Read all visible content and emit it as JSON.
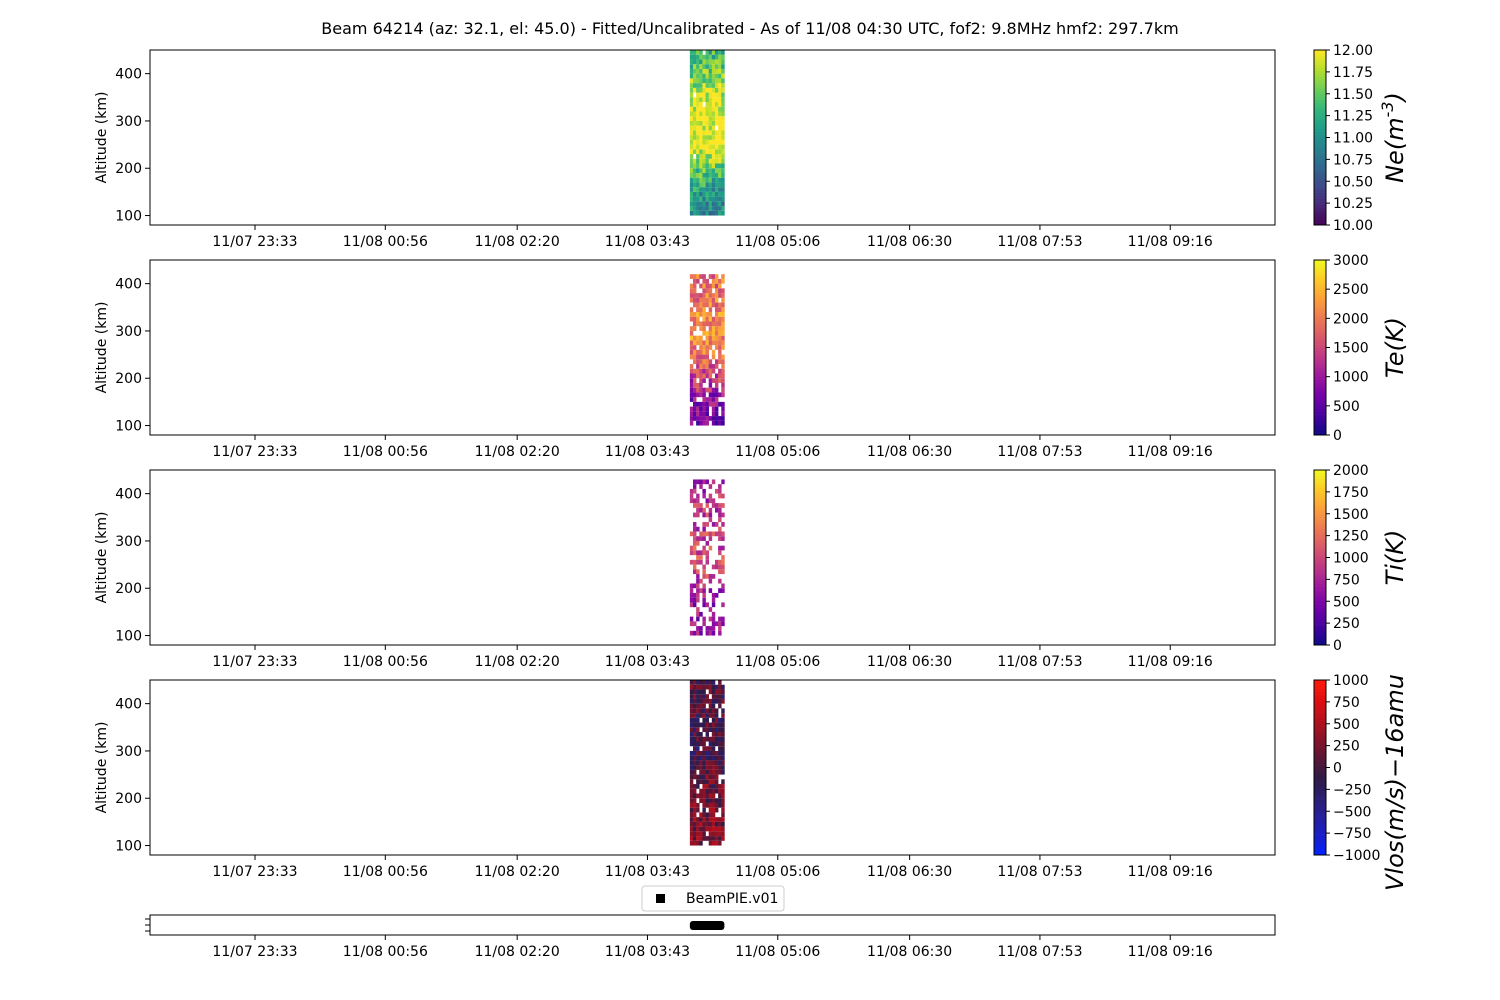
{
  "figure": {
    "title": "Beam 64214 (az: 32.1, el: 45.0) - Fitted/Uncalibrated - As of 11/08 04:30 UTC, fof2: 9.8MHz  hmf2: 297.7km"
  },
  "chart_data": [
    {
      "type": "heatmap",
      "name": "Ne",
      "colorbar_label": "Ne(m^-3)",
      "ylabel": "Altitude (km)",
      "colormap": "viridis",
      "clim": [
        10.0,
        12.0
      ],
      "colorbar_ticks": [
        "10.00",
        "10.25",
        "10.50",
        "10.75",
        "11.00",
        "11.25",
        "11.50",
        "11.75",
        "12.00"
      ],
      "ylim": [
        80,
        450
      ],
      "yticks": [
        100,
        200,
        300,
        400
      ],
      "xticks": [
        "11/07 23:33",
        "11/08 00:56",
        "11/08 02:20",
        "11/08 03:43",
        "11/08 05:06",
        "11/08 06:30",
        "11/08 07:53",
        "11/08 09:16"
      ],
      "data_time_range": [
        "11/08 04:10",
        "11/08 04:32"
      ],
      "data_alt_range": [
        100,
        450
      ],
      "profile": [
        [
          100,
          10.9
        ],
        [
          150,
          11.1
        ],
        [
          200,
          11.5
        ],
        [
          250,
          11.95
        ],
        [
          300,
          11.95
        ],
        [
          350,
          11.85
        ],
        [
          400,
          11.55
        ],
        [
          450,
          11.3
        ]
      ],
      "fill_fraction": 0.98
    },
    {
      "type": "heatmap",
      "name": "Te",
      "colorbar_label": "Te(K)",
      "ylabel": "Altitude (km)",
      "colormap": "plasma",
      "clim": [
        0,
        3000
      ],
      "colorbar_ticks": [
        "0",
        "500",
        "1000",
        "1500",
        "2000",
        "2500",
        "3000"
      ],
      "ylim": [
        80,
        450
      ],
      "yticks": [
        100,
        200,
        300,
        400
      ],
      "xticks": [
        "11/07 23:33",
        "11/08 00:56",
        "11/08 02:20",
        "11/08 03:43",
        "11/08 05:06",
        "11/08 06:30",
        "11/08 07:53",
        "11/08 09:16"
      ],
      "data_time_range": [
        "11/08 04:10",
        "11/08 04:32"
      ],
      "data_alt_range": [
        100,
        420
      ],
      "profile": [
        [
          100,
          700
        ],
        [
          150,
          900
        ],
        [
          200,
          1400
        ],
        [
          250,
          2000
        ],
        [
          300,
          2300
        ],
        [
          350,
          2000
        ],
        [
          400,
          1900
        ]
      ],
      "fill_fraction": 0.85
    },
    {
      "type": "heatmap",
      "name": "Ti",
      "colorbar_label": "Ti(K)",
      "ylabel": "Altitude (km)",
      "colormap": "plasma",
      "clim": [
        0,
        2000
      ],
      "colorbar_ticks": [
        "0",
        "250",
        "500",
        "750",
        "1000",
        "1250",
        "1500",
        "1750",
        "2000"
      ],
      "ylim": [
        80,
        450
      ],
      "yticks": [
        100,
        200,
        300,
        400
      ],
      "xticks": [
        "11/07 23:33",
        "11/08 00:56",
        "11/08 02:20",
        "11/08 03:43",
        "11/08 05:06",
        "11/08 06:30",
        "11/08 07:53",
        "11/08 09:16"
      ],
      "data_time_range": [
        "11/08 04:10",
        "11/08 04:32"
      ],
      "data_alt_range": [
        100,
        430
      ],
      "profile": [
        [
          100,
          650
        ],
        [
          150,
          650
        ],
        [
          200,
          800
        ],
        [
          250,
          1050
        ],
        [
          300,
          950
        ],
        [
          350,
          900
        ],
        [
          400,
          800
        ]
      ],
      "fill_fraction": 0.5
    },
    {
      "type": "heatmap",
      "name": "Vlos",
      "colorbar_label": "Vlos(m/s)−16amu",
      "ylabel": "Altitude (km)",
      "colormap": "bwr-dark",
      "clim": [
        -1000,
        1000
      ],
      "colorbar_ticks": [
        "−1000",
        "−750",
        "−500",
        "−250",
        "0",
        "250",
        "500",
        "750",
        "1000"
      ],
      "ylim": [
        80,
        450
      ],
      "yticks": [
        100,
        200,
        300,
        400
      ],
      "xticks": [
        "11/07 23:33",
        "11/08 00:56",
        "11/08 02:20",
        "11/08 03:43",
        "11/08 05:06",
        "11/08 06:30",
        "11/08 07:53",
        "11/08 09:16"
      ],
      "data_time_range": [
        "11/08 04:10",
        "11/08 04:32"
      ],
      "data_alt_range": [
        100,
        450
      ],
      "profile": [
        [
          100,
          250
        ],
        [
          150,
          200
        ],
        [
          200,
          150
        ],
        [
          250,
          100
        ],
        [
          300,
          -100
        ],
        [
          350,
          -50
        ],
        [
          400,
          0
        ],
        [
          450,
          0
        ]
      ],
      "fill_fraction": 0.9
    },
    {
      "type": "scatter",
      "name": "mode",
      "legend": [
        "BeamPIE.v01"
      ],
      "xticks": [
        "11/07 23:33",
        "11/08 00:56",
        "11/08 02:20",
        "11/08 03:43",
        "11/08 05:06",
        "11/08 06:30",
        "11/08 07:53",
        "11/08 09:16"
      ],
      "data_time_range": [
        "11/08 04:10",
        "11/08 04:32"
      ],
      "color": "#000000"
    }
  ]
}
